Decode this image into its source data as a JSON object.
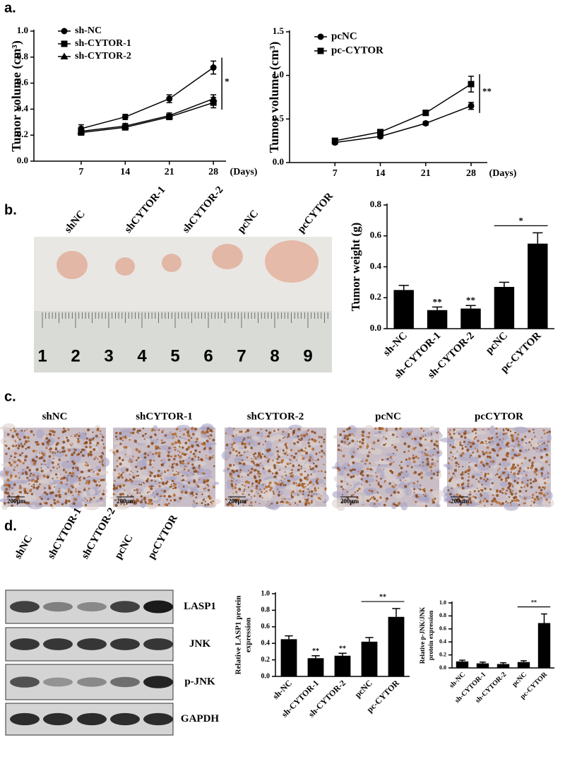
{
  "panel_labels": [
    "a.",
    "b.",
    "c.",
    "d."
  ],
  "chart_data": [
    {
      "type": "line",
      "ylabel": "Tumor volume (cm³)",
      "xlabel": "(Days)",
      "x": [
        7,
        14,
        21,
        28
      ],
      "xlim": [
        -0.5,
        30
      ],
      "xticks": [
        7,
        14,
        21,
        28
      ],
      "ylim": [
        0,
        1.0
      ],
      "yticks": [
        {
          "value": 0,
          "label": "0.0"
        },
        0.2,
        0.4,
        0.6,
        0.8,
        {
          "value": 1,
          "label": "1.0"
        }
      ],
      "legend": "upper left",
      "annotation": "*",
      "series": [
        {
          "name": "sh-NC",
          "color": "#000000",
          "marker": "circle",
          "values": [
            0.25,
            0.34,
            0.48,
            0.72
          ],
          "errors": [
            0.03,
            0.02,
            0.03,
            0.05
          ]
        },
        {
          "name": "sh-CYTOR-1",
          "color": "#000000",
          "marker": "square",
          "values": [
            0.22,
            0.26,
            0.34,
            0.45
          ],
          "errors": [
            0.02,
            0.02,
            0.02,
            0.04
          ]
        },
        {
          "name": "sh-CYTOR-2",
          "color": "#000000",
          "marker": "triangle",
          "values": [
            0.23,
            0.27,
            0.35,
            0.48
          ],
          "errors": [
            0.02,
            0.02,
            0.02,
            0.03
          ]
        }
      ]
    },
    {
      "type": "line",
      "ylabel": "Tumor volume (cm³)",
      "xlabel": "(Days)",
      "x": [
        7,
        14,
        21,
        28
      ],
      "xlim": [
        0,
        30.5
      ],
      "xticks": [
        7,
        14,
        21,
        28
      ],
      "ylim": [
        0,
        1.5
      ],
      "yticks": [
        {
          "value": 0,
          "label": "0.0"
        },
        0.5,
        {
          "value": 1,
          "label": "1.0"
        },
        1.5
      ],
      "legend": "upper left",
      "annotation": "**",
      "series": [
        {
          "name": "pcNC",
          "color": "#000000",
          "marker": "circle",
          "values": [
            0.23,
            0.3,
            0.45,
            0.65
          ],
          "errors": [
            0.02,
            0.02,
            0.02,
            0.04
          ]
        },
        {
          "name": "pc-CYTOR",
          "color": "#000000",
          "marker": "square",
          "values": [
            0.25,
            0.35,
            0.57,
            0.9
          ],
          "errors": [
            0.02,
            0.02,
            0.03,
            0.09
          ]
        }
      ]
    },
    {
      "type": "bar",
      "ylabel": [
        "Tumor weight (g)"
      ],
      "categories": [
        "sh-NC",
        "sh-CYTOR-1",
        "sh-CYTOR-2",
        "pcNC",
        "pc-CYTOR"
      ],
      "color": "#000000",
      "values": [
        0.25,
        0.12,
        0.13,
        0.27,
        0.55
      ],
      "errors": [
        0.03,
        0.02,
        0.02,
        0.03,
        0.07
      ],
      "ylim": [
        0,
        0.8
      ],
      "yticks": [
        {
          "value": 0,
          "label": "0.0"
        },
        0.2,
        0.4,
        0.6,
        0.8
      ],
      "annotations": [
        {
          "text": "**",
          "index": 1
        },
        {
          "text": "**",
          "index": 2
        },
        {
          "text": "*",
          "from": 3,
          "to": 4
        }
      ]
    },
    {
      "type": "bar",
      "ylabel": [
        "Relative LASP1 protein",
        "expression"
      ],
      "categories": [
        "sh-NC",
        "sh-CYTOR-1",
        "sh-CYTOR-2",
        "pcNC",
        "pc-CYTOR"
      ],
      "color": "#000000",
      "values": [
        0.45,
        0.22,
        0.25,
        0.42,
        0.72
      ],
      "errors": [
        0.04,
        0.03,
        0.03,
        0.05,
        0.1
      ],
      "ylim": [
        0,
        1.0
      ],
      "yticks": [
        {
          "value": 0,
          "label": "0.0"
        },
        0.2,
        0.4,
        0.6,
        0.8,
        {
          "value": 1,
          "label": "1.0"
        }
      ],
      "annotations": [
        {
          "text": "**",
          "index": 1
        },
        {
          "text": "**",
          "index": 2
        },
        {
          "text": "**",
          "from": 3,
          "to": 4
        }
      ]
    },
    {
      "type": "bar",
      "ylabel": [
        "Relative p-JNK/JNK",
        "protein expression"
      ],
      "categories": [
        "sh-NC",
        "sh-CYTOR-1",
        "sh-CYTOR-2",
        "pcNC",
        "pc-CYTOR"
      ],
      "color": "#000000",
      "values": [
        0.1,
        0.07,
        0.06,
        0.09,
        0.69
      ],
      "errors": [
        0.02,
        0.02,
        0.02,
        0.02,
        0.14
      ],
      "ylim": [
        0,
        1.0
      ],
      "yticks": [
        {
          "value": 0,
          "label": "0.0"
        },
        0.2,
        0.4,
        0.6,
        0.8,
        {
          "value": 1,
          "label": "1.0"
        }
      ],
      "annotations": [
        {
          "text": "**",
          "from": 3,
          "to": 4
        }
      ]
    }
  ],
  "tumor_photo": {
    "labels": [
      "shNC",
      "shCYTOR-1",
      "shCYTOR-2",
      "pcNC",
      "pcCYTOR"
    ],
    "ruler": [
      1,
      2,
      3,
      4,
      5,
      6,
      7,
      8,
      9
    ]
  },
  "ihc": {
    "labels": [
      "shNC",
      "shCYTOR-1",
      "shCYTOR-2",
      "pcNC",
      "pcCYTOR"
    ],
    "scale_bar": "200μm"
  },
  "western_blot": {
    "lanes": [
      "shNC",
      "shCYTOR-1",
      "shCYTOR-2",
      "pcNC",
      "pcCYTOR"
    ],
    "proteins": [
      "LASP1",
      "JNK",
      "p-JNK",
      "GAPDH"
    ]
  }
}
